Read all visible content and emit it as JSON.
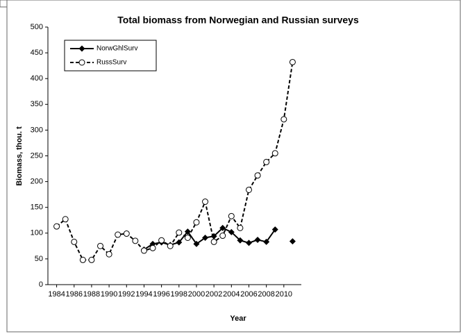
{
  "chart_data": {
    "type": "line",
    "title": "Total biomass from Norwegian and Russian surveys",
    "x_label": "Year",
    "y_label": "Biomass, thou. t",
    "x": [
      1984,
      1985,
      1986,
      1987,
      1988,
      1989,
      1990,
      1991,
      1992,
      1993,
      1994,
      1995,
      1996,
      1997,
      1998,
      1999,
      2000,
      2001,
      2002,
      2003,
      2004,
      2005,
      2006,
      2007,
      2008,
      2009,
      2010,
      2011
    ],
    "series": [
      {
        "name": "NorwGhlSurv",
        "color": "#000000",
        "dash": "solid",
        "marker": "diamond",
        "values": [
          null,
          null,
          null,
          null,
          null,
          null,
          null,
          null,
          null,
          null,
          68,
          79,
          82,
          77,
          82,
          103,
          79,
          91,
          94,
          110,
          102,
          86,
          81,
          87,
          83,
          107,
          null,
          84
        ]
      },
      {
        "name": "RussSurv",
        "color": "#000000",
        "dash": "dashed",
        "marker": "circle",
        "values": [
          113,
          127,
          83,
          48,
          48,
          75,
          59,
          97,
          99,
          85,
          66,
          71,
          86,
          75,
          101,
          91,
          121,
          161,
          83,
          95,
          133,
          110,
          184,
          212,
          238,
          255,
          321,
          432
        ]
      }
    ],
    "xlim": [
      1983,
      2012
    ],
    "xticks": [
      1984,
      1986,
      1988,
      1990,
      1992,
      1994,
      1996,
      1998,
      2000,
      2002,
      2004,
      2006,
      2008,
      2010
    ],
    "ylim": [
      0,
      500
    ],
    "yticks": [
      0,
      50,
      100,
      150,
      200,
      250,
      300,
      350,
      400,
      450,
      500
    ],
    "legend": "upper left"
  }
}
